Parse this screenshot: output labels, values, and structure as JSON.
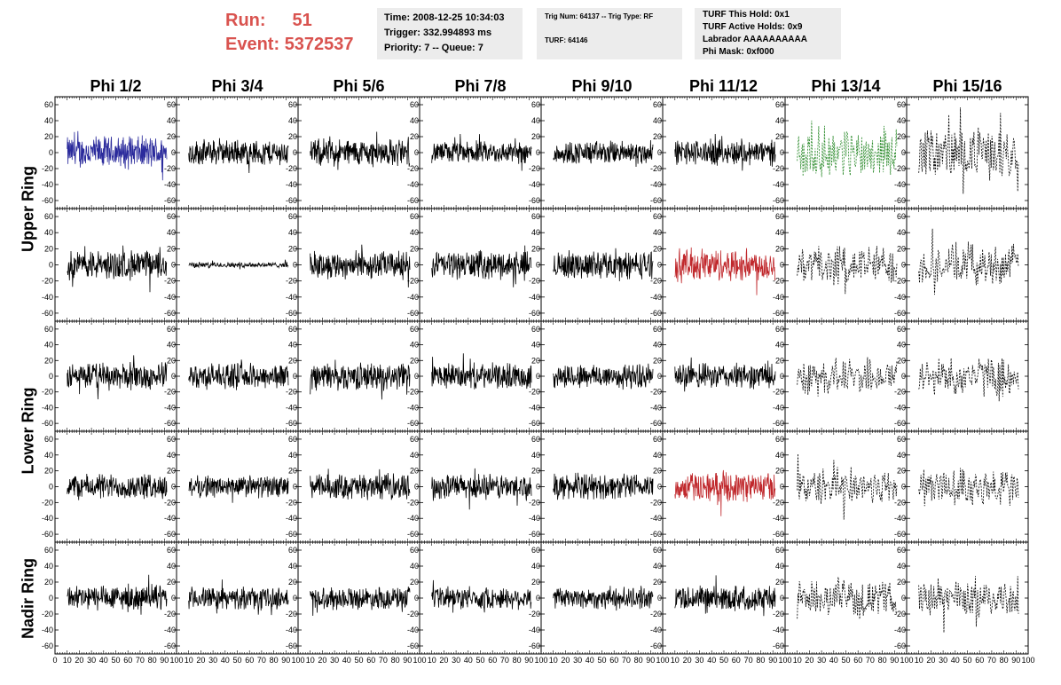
{
  "header": {
    "run_label": "Run:",
    "run_value": "51",
    "event_label": "Event:",
    "event_value": "5372537",
    "time": "Time: 2008-12-25 10:34:03",
    "trigger": "Trigger: 332.994893 ms",
    "priority": "Priority: 7 -- Queue: 7",
    "trig_num": "Trig Num: 64137 -- Trig Type: RF",
    "turf": "TURF: 64146",
    "turf_this_hold": "TURF This Hold: 0x1",
    "turf_active_holds": "TURF Active Holds: 0x9",
    "labrador": "Labrador AAAAAAAAAA",
    "phi_mask": "Phi Mask: 0xf000"
  },
  "columns": [
    "Phi 1/2",
    "Phi 3/4",
    "Phi 5/6",
    "Phi 7/8",
    "Phi 9/10",
    "Phi 11/12",
    "Phi 13/14",
    "Phi 15/16"
  ],
  "ring_labels": {
    "upper": "Upper Ring",
    "lower": "Lower Ring",
    "nadir": "Nadir Ring"
  },
  "colors": {
    "blue": "#2b2b9c",
    "red": "#c0282c",
    "green": "#2a8a2a",
    "black": "#000000",
    "run_text": "#d9534f",
    "info_box": "#ececec"
  },
  "chart_data": {
    "type": "line",
    "rows": 5,
    "cols": 8,
    "ylim": [
      -70,
      70
    ],
    "xlim": [
      0,
      100
    ],
    "yticks": [
      "60",
      "40",
      "20",
      "0",
      "-20",
      "-40",
      "-60"
    ],
    "xticks_first": [
      "0",
      "10",
      "20",
      "30",
      "40",
      "50",
      "60",
      "70",
      "80",
      "90",
      "100"
    ],
    "xticks_row": "10 20 30 40 50 60 70 80 90 100",
    "styles": [
      [
        "blue",
        "black",
        "black",
        "black",
        "black",
        "black",
        "green-dash",
        "black-dash"
      ],
      [
        "black",
        "black",
        "black",
        "black",
        "black",
        "red",
        "black-dash",
        "black-dash"
      ],
      [
        "black",
        "black",
        "black",
        "black",
        "black",
        "black",
        "black-dash",
        "black-dash"
      ],
      [
        "black",
        "black",
        "black",
        "black",
        "black",
        "red",
        "black-dash",
        "black-dash"
      ],
      [
        "black",
        "black",
        "black",
        "black",
        "black",
        "black",
        "black-dash",
        "black-dash"
      ]
    ],
    "amplitudes": [
      [
        18,
        14,
        15,
        12,
        13,
        14,
        28,
        28
      ],
      [
        16,
        3,
        15,
        15,
        15,
        18,
        22,
        22
      ],
      [
        15,
        14,
        15,
        14,
        14,
        14,
        20,
        22
      ],
      [
        14,
        12,
        14,
        14,
        14,
        16,
        20,
        22
      ],
      [
        14,
        12,
        12,
        12,
        12,
        14,
        18,
        22
      ]
    ],
    "time_range": [
      10,
      92
    ]
  }
}
